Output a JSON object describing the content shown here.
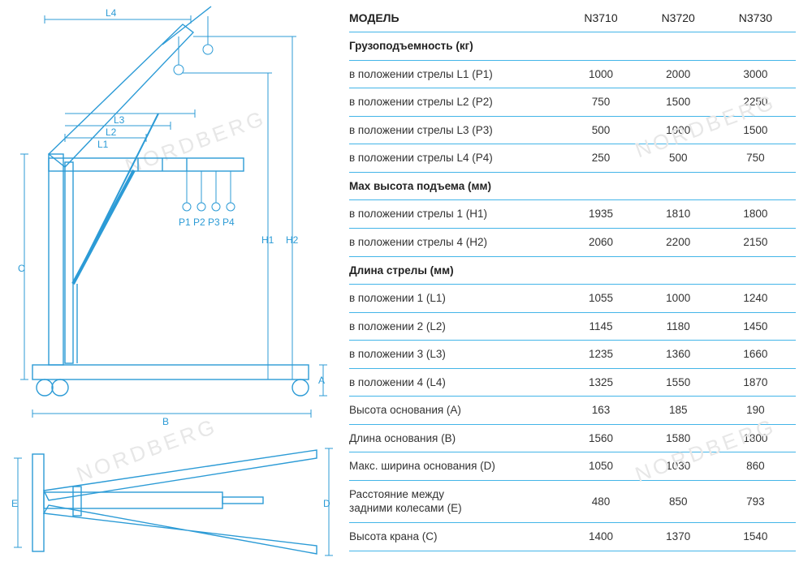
{
  "table": {
    "header": {
      "label": "МОДЕЛЬ",
      "models": [
        "N3710",
        "N3720",
        "N3730"
      ]
    },
    "sections": [
      {
        "title": "Грузоподъемность (кг)",
        "rows": [
          {
            "label": "в положении стрелы L1 (P1)",
            "v": [
              "1000",
              "2000",
              "3000"
            ]
          },
          {
            "label": "в положении стрелы L2 (P2)",
            "v": [
              "750",
              "1500",
              "2250"
            ]
          },
          {
            "label": "в положении стрелы L3 (P3)",
            "v": [
              "500",
              "1000",
              "1500"
            ]
          },
          {
            "label": "в положении стрелы L4 (P4)",
            "v": [
              "250",
              "500",
              "750"
            ]
          }
        ]
      },
      {
        "title": "Max высота подъема (мм)",
        "rows": [
          {
            "label": "в положении стрелы 1 (H1)",
            "v": [
              "1935",
              "1810",
              "1800"
            ]
          },
          {
            "label": "в положении стрелы 4 (H2)",
            "v": [
              "2060",
              "2200",
              "2150"
            ]
          }
        ]
      },
      {
        "title": "Длина стрелы (мм)",
        "rows": [
          {
            "label": "в положении 1 (L1)",
            "v": [
              "1055",
              "1000",
              "1240"
            ]
          },
          {
            "label": "в положении 2 (L2)",
            "v": [
              "1145",
              "1180",
              "1450"
            ]
          },
          {
            "label": "в положении 3 (L3)",
            "v": [
              "1235",
              "1360",
              "1660"
            ]
          },
          {
            "label": "в положении 4 (L4)",
            "v": [
              "1325",
              "1550",
              "1870"
            ]
          }
        ]
      },
      {
        "title": null,
        "rows": [
          {
            "label": "Высота основания (A)",
            "v": [
              "163",
              "185",
              "190"
            ]
          },
          {
            "label": "Длина основания (B)",
            "v": [
              "1560",
              "1580",
              "1800"
            ]
          },
          {
            "label": "Макс. ширина основания (D)",
            "v": [
              "1050",
              "1030",
              "860"
            ]
          },
          {
            "label": "Расстояние между\nзадними колесами (E)",
            "v": [
              "480",
              "850",
              "793"
            ]
          },
          {
            "label": "Высота крана (C)",
            "v": [
              "1400",
              "1370",
              "1540"
            ]
          }
        ]
      }
    ]
  },
  "diagram": {
    "dimension_labels": {
      "L1": "L1",
      "L2": "L2",
      "L3": "L3",
      "L4": "L4",
      "P": "P1  P2  P3 P4",
      "H1": "H1",
      "H2": "H2",
      "A": "A",
      "B": "B",
      "C": "C",
      "D": "D",
      "E": "E"
    },
    "color": "#2c9bd6"
  },
  "watermark_text": "NORDBERG"
}
